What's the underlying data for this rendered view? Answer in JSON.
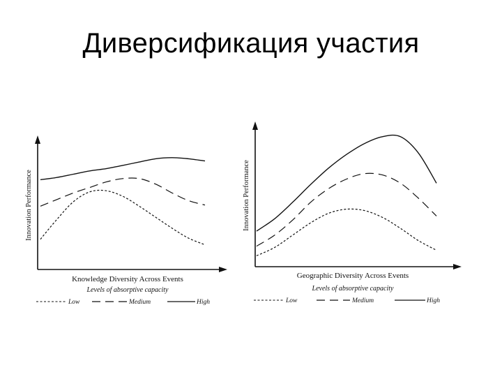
{
  "title": "Диверсификация участия",
  "chart_data": [
    {
      "type": "line",
      "xlabel": "Knowledge Diversity Across Events",
      "ylabel": "Innovation Performance",
      "legend_title": "Levels of absorptive capacity",
      "legend_placement": "bottom",
      "grid": false,
      "xlim": [
        0,
        1
      ],
      "ylim": [
        0,
        1
      ],
      "series": [
        {
          "name": "Low",
          "style": "dotted",
          "x": [
            0,
            0.1,
            0.2,
            0.3,
            0.4,
            0.5,
            0.6,
            0.7,
            0.8,
            0.9,
            1.0
          ],
          "values": [
            0.16,
            0.34,
            0.5,
            0.59,
            0.6,
            0.55,
            0.46,
            0.36,
            0.26,
            0.17,
            0.11
          ]
        },
        {
          "name": "Medium",
          "style": "dashed",
          "x": [
            0,
            0.1,
            0.2,
            0.3,
            0.4,
            0.5,
            0.6,
            0.7,
            0.8,
            0.9,
            1.0
          ],
          "values": [
            0.46,
            0.52,
            0.58,
            0.63,
            0.68,
            0.71,
            0.71,
            0.66,
            0.58,
            0.51,
            0.47
          ]
        },
        {
          "name": "High",
          "style": "solid",
          "x": [
            0,
            0.1,
            0.2,
            0.3,
            0.4,
            0.5,
            0.6,
            0.7,
            0.8,
            0.9,
            1.0
          ],
          "values": [
            0.7,
            0.72,
            0.75,
            0.78,
            0.8,
            0.83,
            0.86,
            0.89,
            0.9,
            0.89,
            0.87
          ]
        }
      ]
    },
    {
      "type": "line",
      "xlabel": "Geographic Diversity Across Events",
      "ylabel": "Innovation Performance",
      "legend_title": "Levels of absorptive capacity",
      "legend_placement": "bottom",
      "grid": false,
      "xlim": [
        0,
        1
      ],
      "ylim": [
        0,
        1
      ],
      "series": [
        {
          "name": "Low",
          "style": "dotted",
          "x": [
            0,
            0.1,
            0.2,
            0.3,
            0.4,
            0.5,
            0.6,
            0.7,
            0.8,
            0.9,
            1.0
          ],
          "values": [
            0.07,
            0.13,
            0.22,
            0.31,
            0.38,
            0.41,
            0.4,
            0.35,
            0.27,
            0.18,
            0.11
          ]
        },
        {
          "name": "Medium",
          "style": "dashed",
          "x": [
            0,
            0.1,
            0.2,
            0.3,
            0.4,
            0.5,
            0.6,
            0.7,
            0.8,
            0.9,
            1.0
          ],
          "values": [
            0.14,
            0.22,
            0.33,
            0.46,
            0.56,
            0.63,
            0.67,
            0.66,
            0.6,
            0.49,
            0.36
          ]
        },
        {
          "name": "High",
          "style": "solid",
          "x": [
            0,
            0.1,
            0.2,
            0.3,
            0.4,
            0.5,
            0.6,
            0.7,
            0.8,
            0.9,
            1.0
          ],
          "values": [
            0.25,
            0.34,
            0.46,
            0.59,
            0.71,
            0.81,
            0.89,
            0.94,
            0.94,
            0.82,
            0.6
          ]
        }
      ]
    }
  ]
}
